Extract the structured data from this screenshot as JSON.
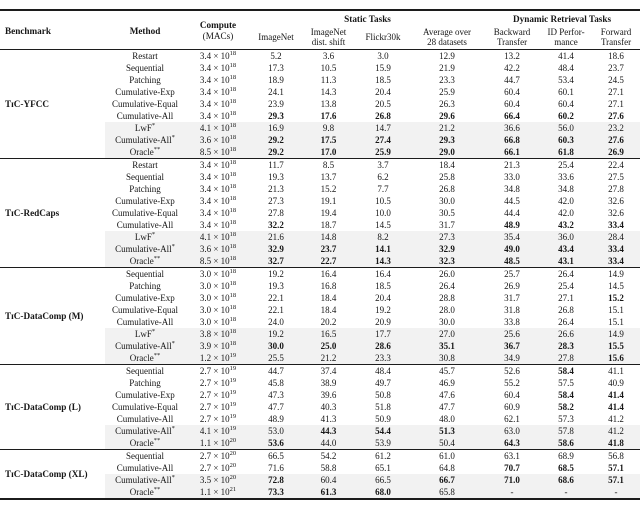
{
  "colors": {
    "row_shade": "#f2f2f2",
    "text": "#161616",
    "rule": "#1c1c1c"
  },
  "table": {
    "header": {
      "benchmark": "Benchmark",
      "method": "Method",
      "compute_line1": "Compute",
      "compute_line2": "(MACs)",
      "static_group": "Static Tasks",
      "dynamic_group": "Dynamic Retrieval Tasks",
      "col_imagenet": "ImageNet",
      "col_imagenet_shift": "ImageNet\ndist. shift",
      "col_flickr": "Flickr30k",
      "col_avg": "Average over\n28 datasets",
      "col_backward": "Backward\nTransfer",
      "col_id": "ID Perfor-\nmance",
      "col_forward": "Forward\nTransfer"
    },
    "groups": [
      {
        "benchmark": "TɪC-YFCC",
        "rows": [
          {
            "method": "Restart",
            "compute": "3.4 × 10^18",
            "values": [
              "5.2",
              "3.6",
              "3.0",
              "12.9",
              "13.2",
              "41.4",
              "18.6"
            ],
            "bold": [],
            "shaded": false
          },
          {
            "method": "Sequential",
            "compute": "3.4 × 10^18",
            "values": [
              "17.3",
              "10.5",
              "15.9",
              "21.9",
              "42.2",
              "48.4",
              "23.7"
            ],
            "bold": [],
            "shaded": false
          },
          {
            "method": "Patching",
            "compute": "3.4 × 10^18",
            "values": [
              "18.9",
              "11.3",
              "18.5",
              "23.3",
              "44.7",
              "53.4",
              "24.5"
            ],
            "bold": [],
            "shaded": false
          },
          {
            "method": "Cumulative-Exp",
            "compute": "3.4 × 10^18",
            "values": [
              "24.1",
              "14.3",
              "20.4",
              "25.9",
              "60.4",
              "60.1",
              "27.1"
            ],
            "bold": [],
            "shaded": false
          },
          {
            "method": "Cumulative-Equal",
            "compute": "3.4 × 10^18",
            "values": [
              "23.9",
              "13.8",
              "20.5",
              "26.3",
              "60.4",
              "60.4",
              "27.1"
            ],
            "bold": [],
            "shaded": false
          },
          {
            "method": "Cumulative-All",
            "compute": "3.4 × 10^18",
            "values": [
              "29.3",
              "17.6",
              "26.8",
              "29.6",
              "66.4",
              "60.2",
              "27.6"
            ],
            "bold": [
              0,
              1,
              2,
              3,
              4,
              5,
              6
            ],
            "shaded": false
          },
          {
            "method": "LwF*",
            "compute": "4.1 × 10^18",
            "values": [
              "16.9",
              "9.8",
              "14.7",
              "21.2",
              "36.6",
              "56.0",
              "23.2"
            ],
            "bold": [],
            "shaded": true
          },
          {
            "method": "Cumulative-All*",
            "compute": "3.6 × 10^18",
            "values": [
              "29.2",
              "17.5",
              "27.4",
              "29.3",
              "66.8",
              "60.3",
              "27.6"
            ],
            "bold": [
              0,
              1,
              2,
              3,
              4,
              5,
              6
            ],
            "shaded": true
          },
          {
            "method": "Oracle**",
            "compute": "8.5 × 10^18",
            "values": [
              "29.2",
              "17.0",
              "25.9",
              "29.0",
              "66.1",
              "61.8",
              "26.9"
            ],
            "bold": [
              0,
              1,
              2,
              3,
              4,
              5,
              6
            ],
            "shaded": true
          }
        ]
      },
      {
        "benchmark": "TɪC-RedCaps",
        "rows": [
          {
            "method": "Restart",
            "compute": "3.4 × 10^18",
            "values": [
              "11.7",
              "8.5",
              "3.7",
              "18.4",
              "21.3",
              "25.4",
              "22.4"
            ],
            "bold": [],
            "shaded": false
          },
          {
            "method": "Sequential",
            "compute": "3.4 × 10^18",
            "values": [
              "19.3",
              "13.7",
              "6.2",
              "25.8",
              "33.0",
              "33.6",
              "27.5"
            ],
            "bold": [],
            "shaded": false
          },
          {
            "method": "Patching",
            "compute": "3.4 × 10^18",
            "values": [
              "21.3",
              "15.2",
              "7.7",
              "26.8",
              "34.8",
              "34.8",
              "27.8"
            ],
            "bold": [],
            "shaded": false
          },
          {
            "method": "Cumulative-Exp",
            "compute": "3.4 × 10^18",
            "values": [
              "27.3",
              "19.1",
              "10.5",
              "30.0",
              "44.5",
              "42.0",
              "32.6"
            ],
            "bold": [],
            "shaded": false
          },
          {
            "method": "Cumulative-Equal",
            "compute": "3.4 × 10^18",
            "values": [
              "27.8",
              "19.4",
              "10.0",
              "30.5",
              "44.4",
              "42.0",
              "32.6"
            ],
            "bold": [],
            "shaded": false
          },
          {
            "method": "Cumulative-All",
            "compute": "3.4 × 10^18",
            "values": [
              "32.2",
              "18.7",
              "14.5",
              "31.7",
              "48.9",
              "43.2",
              "33.4"
            ],
            "bold": [
              0,
              4,
              5,
              6
            ],
            "shaded": false
          },
          {
            "method": "LwF*",
            "compute": "4.1 × 10^18",
            "values": [
              "21.6",
              "14.8",
              "8.2",
              "27.3",
              "35.4",
              "36.0",
              "28.4"
            ],
            "bold": [],
            "shaded": true
          },
          {
            "method": "Cumulative-All*",
            "compute": "3.6 × 10^18",
            "values": [
              "32.9",
              "23.7",
              "14.1",
              "32.9",
              "49.0",
              "43.4",
              "33.4"
            ],
            "bold": [
              0,
              1,
              2,
              3,
              4,
              5,
              6
            ],
            "shaded": true
          },
          {
            "method": "Oracle**",
            "compute": "8.5 × 10^18",
            "values": [
              "32.7",
              "22.7",
              "14.3",
              "32.3",
              "48.5",
              "43.1",
              "33.4"
            ],
            "bold": [
              0,
              1,
              2,
              3,
              4,
              5,
              6
            ],
            "shaded": true
          }
        ]
      },
      {
        "benchmark": "TɪC-DataComp (M)",
        "rows": [
          {
            "method": "Sequential",
            "compute": "3.0 × 10^18",
            "values": [
              "19.2",
              "16.4",
              "16.4",
              "26.0",
              "25.7",
              "26.4",
              "14.9"
            ],
            "bold": [],
            "shaded": false
          },
          {
            "method": "Patching",
            "compute": "3.0 × 10^18",
            "values": [
              "19.3",
              "16.8",
              "18.5",
              "26.4",
              "26.9",
              "25.4",
              "14.5"
            ],
            "bold": [],
            "shaded": false
          },
          {
            "method": "Cumulative-Exp",
            "compute": "3.0 × 10^18",
            "values": [
              "22.1",
              "18.4",
              "20.4",
              "28.8",
              "31.7",
              "27.1",
              "15.2"
            ],
            "bold": [
              6
            ],
            "shaded": false
          },
          {
            "method": "Cumulative-Equal",
            "compute": "3.0 × 10^18",
            "values": [
              "22.1",
              "18.4",
              "19.2",
              "28.0",
              "31.8",
              "26.8",
              "15.1"
            ],
            "bold": [],
            "shaded": false
          },
          {
            "method": "Cumulative-All",
            "compute": "3.0 × 10^18",
            "values": [
              "24.0",
              "20.2",
              "20.9",
              "30.0",
              "33.8",
              "26.4",
              "15.1"
            ],
            "bold": [],
            "shaded": false
          },
          {
            "method": "LwF*",
            "compute": "3.8 × 10^18",
            "values": [
              "19.2",
              "16.5",
              "17.7",
              "27.0",
              "25.6",
              "26.6",
              "14.9"
            ],
            "bold": [],
            "shaded": true
          },
          {
            "method": "Cumulative-All*",
            "compute": "3.9 × 10^18",
            "values": [
              "30.0",
              "25.0",
              "28.6",
              "35.1",
              "36.7",
              "28.3",
              "15.5"
            ],
            "bold": [
              0,
              1,
              2,
              3,
              4,
              5,
              6
            ],
            "shaded": true
          },
          {
            "method": "Oracle**",
            "compute": "1.2 × 10^19",
            "values": [
              "25.5",
              "21.2",
              "23.3",
              "30.8",
              "34.9",
              "27.8",
              "15.6"
            ],
            "bold": [
              6
            ],
            "shaded": true
          }
        ]
      },
      {
        "benchmark": "TɪC-DataComp (L)",
        "rows": [
          {
            "method": "Sequential",
            "compute": "2.7 × 10^19",
            "values": [
              "44.7",
              "37.4",
              "48.4",
              "45.7",
              "52.6",
              "58.4",
              "41.1"
            ],
            "bold": [
              5
            ],
            "shaded": false
          },
          {
            "method": "Patching",
            "compute": "2.7 × 10^19",
            "values": [
              "45.8",
              "38.9",
              "49.7",
              "46.9",
              "55.2",
              "57.5",
              "40.9"
            ],
            "bold": [],
            "shaded": false
          },
          {
            "method": "Cumulative-Exp",
            "compute": "2.7 × 10^19",
            "values": [
              "47.3",
              "39.6",
              "50.8",
              "47.6",
              "60.4",
              "58.4",
              "41.4"
            ],
            "bold": [
              5,
              6
            ],
            "shaded": false
          },
          {
            "method": "Cumulative-Equal",
            "compute": "2.7 × 10^19",
            "values": [
              "47.7",
              "40.3",
              "51.8",
              "47.7",
              "60.9",
              "58.2",
              "41.4"
            ],
            "bold": [
              5,
              6
            ],
            "shaded": false
          },
          {
            "method": "Cumulative-All",
            "compute": "2.7 × 10^19",
            "values": [
              "48.9",
              "41.3",
              "50.9",
              "48.0",
              "62.1",
              "57.3",
              "41.2"
            ],
            "bold": [],
            "shaded": false
          },
          {
            "method": "Cumulative-All*",
            "compute": "4.1 × 10^19",
            "values": [
              "53.0",
              "44.3",
              "54.4",
              "51.3",
              "63.0",
              "57.8",
              "41.2"
            ],
            "bold": [
              1,
              2,
              3
            ],
            "shaded": true
          },
          {
            "method": "Oracle**",
            "compute": "1.1 × 10^20",
            "values": [
              "53.6",
              "44.0",
              "53.9",
              "50.4",
              "64.3",
              "58.6",
              "41.8"
            ],
            "bold": [
              0,
              4,
              5,
              6
            ],
            "shaded": true
          }
        ]
      },
      {
        "benchmark": "TɪC-DataComp (XL)",
        "rows": [
          {
            "method": "Sequential",
            "compute": "2.7 × 10^20",
            "values": [
              "66.5",
              "54.2",
              "61.2",
              "61.0",
              "63.1",
              "68.9",
              "56.8"
            ],
            "bold": [],
            "shaded": false
          },
          {
            "method": "Cumulative-All",
            "compute": "2.7 × 10^20",
            "values": [
              "71.6",
              "58.8",
              "65.1",
              "64.8",
              "70.7",
              "68.5",
              "57.1"
            ],
            "bold": [
              4,
              5,
              6
            ],
            "shaded": false
          },
          {
            "method": "Cumulative-All*",
            "compute": "3.5 × 10^20",
            "values": [
              "72.8",
              "60.4",
              "66.5",
              "66.7",
              "71.0",
              "68.6",
              "57.1"
            ],
            "bold": [
              0,
              3,
              4,
              5,
              6
            ],
            "shaded": true
          },
          {
            "method": "Oracle**",
            "compute": "1.1 × 10^21",
            "values": [
              "73.3",
              "61.3",
              "68.0",
              "65.8",
              "-",
              "-",
              "-"
            ],
            "bold": [
              0,
              1,
              2
            ],
            "shaded": true
          }
        ]
      }
    ]
  }
}
